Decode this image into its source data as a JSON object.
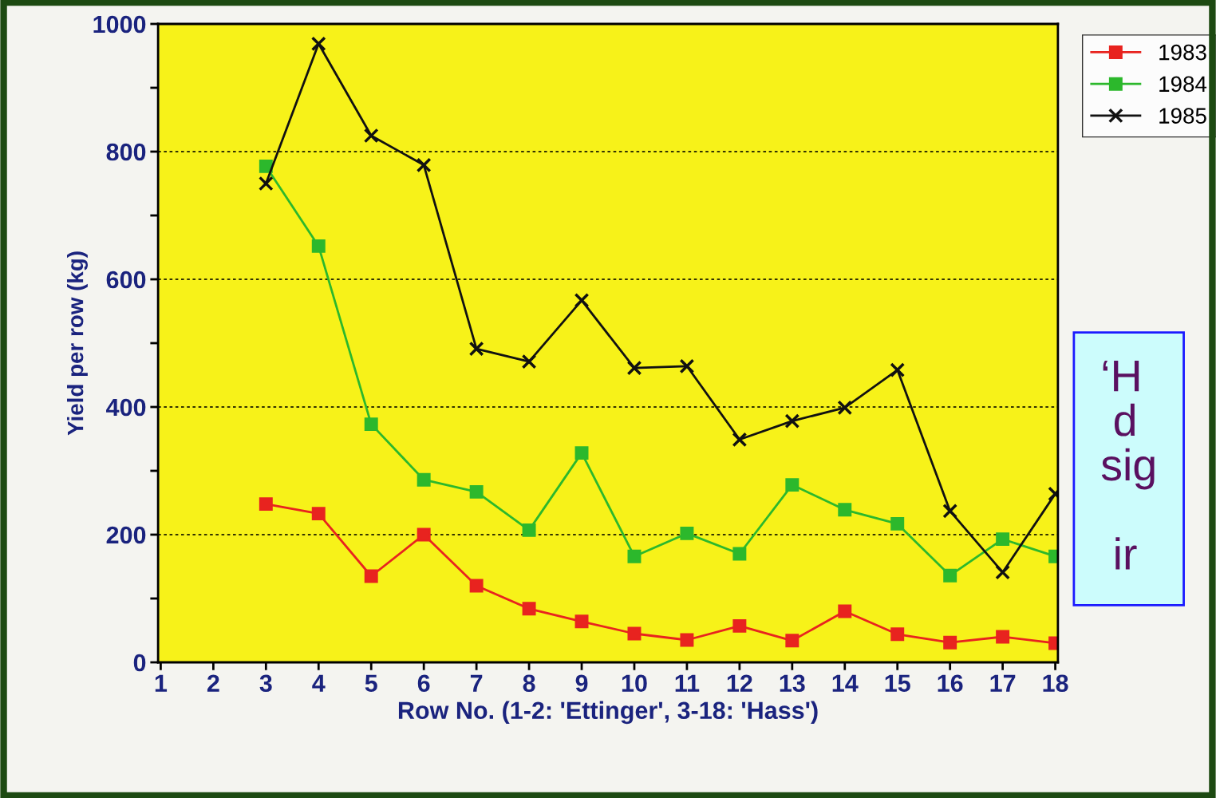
{
  "chart_data": {
    "type": "line",
    "ylabel": "Yield per row (kg)",
    "xlabel": "Row No. (1-2: 'Ettinger', 3-18: 'Hass')",
    "categories": [
      "1",
      "2",
      "3",
      "4",
      "5",
      "6",
      "7",
      "8",
      "9",
      "10",
      "11",
      "12",
      "13",
      "14",
      "15",
      "16",
      "17",
      "18"
    ],
    "series": [
      {
        "name": "1983",
        "color": "#e8231f",
        "marker": "square",
        "values": [
          null,
          null,
          248,
          233,
          135,
          200,
          120,
          84,
          64,
          45,
          35,
          57,
          34,
          80,
          44,
          31,
          40,
          30
        ]
      },
      {
        "name": "1984",
        "color": "#2cb82c",
        "marker": "square",
        "values": [
          null,
          null,
          777,
          652,
          373,
          286,
          267,
          207,
          328,
          166,
          202,
          170,
          278,
          239,
          217,
          136,
          193,
          166
        ]
      },
      {
        "name": "1985",
        "color": "#111111",
        "marker": "cross",
        "values": [
          null,
          null,
          750,
          969,
          825,
          779,
          491,
          471,
          567,
          461,
          464,
          349,
          378,
          399,
          458,
          237,
          141,
          264
        ]
      }
    ],
    "ylim": [
      0,
      1000
    ],
    "yticks": [
      0,
      {
        "value": 100,
        "label": null
      },
      200,
      {
        "value": 300,
        "label": null
      },
      400,
      {
        "value": 500,
        "label": null
      },
      600,
      {
        "value": 700,
        "label": null
      },
      800,
      {
        "value": 900,
        "label": null
      },
      1000
    ],
    "grid": "y",
    "legend": "right",
    "line_style": "solid",
    "annotations": [
      "‘H\n d\nsig\n\n ir"
    ]
  }
}
